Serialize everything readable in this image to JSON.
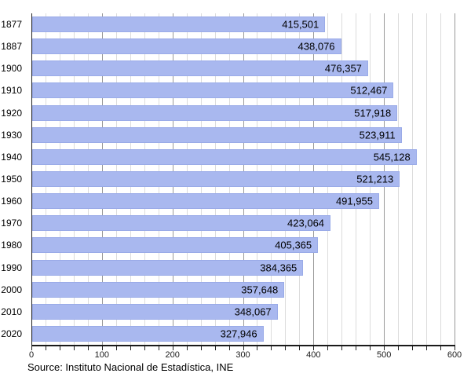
{
  "chart_data": {
    "type": "bar",
    "orientation": "horizontal",
    "title": "",
    "xlabel": "",
    "ylabel": "",
    "categories": [
      "1877",
      "1887",
      "1900",
      "1910",
      "1920",
      "1930",
      "1940",
      "1950",
      "1960",
      "1970",
      "1980",
      "1990",
      "2000",
      "2010",
      "2020"
    ],
    "values": [
      415501,
      438076,
      476357,
      512467,
      517918,
      523911,
      545128,
      521213,
      491955,
      423064,
      405365,
      384365,
      357648,
      348067,
      327946
    ],
    "value_labels": [
      "415,501",
      "438,076",
      "476,357",
      "512,467",
      "517,918",
      "523,911",
      "545,128",
      "521,213",
      "491,955",
      "423,064",
      "405,365",
      "384,365",
      "357,648",
      "348,067",
      "327,946"
    ],
    "xlim": [
      0,
      600
    ],
    "x_tick_unit": 1000,
    "x_major_tick_step": 100,
    "x_minor_tick_step": 20,
    "x_major_tick_labels": [
      "0",
      "100",
      "200",
      "300",
      "400",
      "500",
      "600"
    ],
    "grid": "vertical-minor-and-major",
    "legend": "none",
    "colors": {
      "bar_fill": "#a9b8ef",
      "grid_minor": "#dcdcdc",
      "grid_major": "#999999",
      "axis": "#222222",
      "value_text": "#000000"
    }
  },
  "footer": {
    "source": "Source: Instituto Nacional de Estadística, INE"
  }
}
